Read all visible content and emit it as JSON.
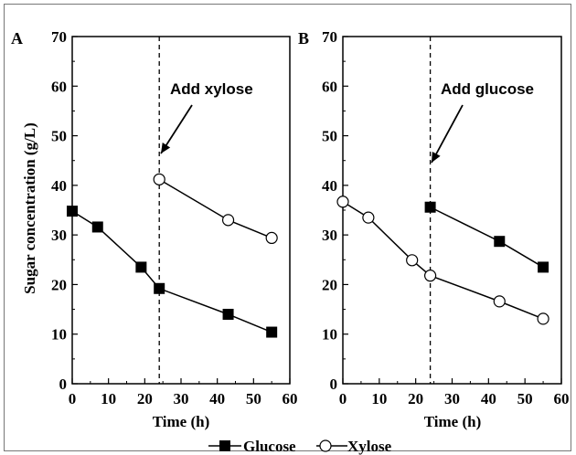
{
  "shared_ylabel": "Sugar concentration (g/L)",
  "legend": {
    "glucose_label": "Glucose",
    "xylose_label": "Xylose"
  },
  "colors": {
    "line": "#000000",
    "marker_fill_glucose": "#000000",
    "marker_fill_xylose": "#ffffff"
  },
  "chart_data": [
    {
      "type": "line",
      "panel": "A",
      "xlabel": "Time (h)",
      "xlim": [
        0,
        60
      ],
      "ylim": [
        0,
        70
      ],
      "xticks": [
        0,
        10,
        20,
        30,
        40,
        50,
        60
      ],
      "yticks": [
        0,
        10,
        20,
        30,
        40,
        50,
        60,
        70
      ],
      "vline_x": 24,
      "annotation": {
        "text": "Add xylose",
        "x": 24,
        "y": 41
      },
      "series": [
        {
          "name": "Glucose",
          "marker": "square-filled",
          "points": [
            [
              0,
              34.8
            ],
            [
              7,
              31.6
            ],
            [
              19,
              23.5
            ],
            [
              24,
              19.2
            ],
            [
              43,
              14.0
            ],
            [
              55,
              10.4
            ]
          ]
        },
        {
          "name": "Xylose",
          "marker": "circle-open",
          "points": [
            [
              24,
              41.2
            ],
            [
              43,
              33.0
            ],
            [
              55,
              29.4
            ]
          ]
        }
      ]
    },
    {
      "type": "line",
      "panel": "B",
      "xlabel": "Time (h)",
      "xlim": [
        0,
        60
      ],
      "ylim": [
        0,
        70
      ],
      "xticks": [
        0,
        10,
        20,
        30,
        40,
        50,
        60
      ],
      "yticks": [
        0,
        10,
        20,
        30,
        40,
        50,
        60,
        70
      ],
      "vline_x": 24,
      "annotation": {
        "text": "Add glucose",
        "x": 24,
        "y": 36
      },
      "series": [
        {
          "name": "Glucose",
          "marker": "square-filled",
          "points": [
            [
              24,
              35.6
            ],
            [
              43,
              28.7
            ],
            [
              55,
              23.5
            ]
          ]
        },
        {
          "name": "Xylose",
          "marker": "circle-open",
          "points": [
            [
              0,
              36.7
            ],
            [
              7,
              33.5
            ],
            [
              19,
              24.9
            ],
            [
              24,
              21.8
            ],
            [
              43,
              16.6
            ],
            [
              55,
              13.1
            ]
          ]
        }
      ]
    }
  ]
}
